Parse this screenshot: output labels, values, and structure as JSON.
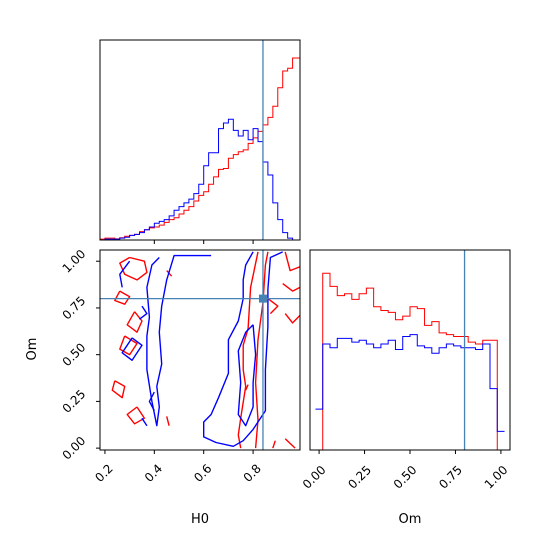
{
  "chart_data": [
    {
      "type": "histogram",
      "variable": "H0",
      "xlim": [
        0.18,
        0.99
      ],
      "truth": 0.84,
      "bin_edges": [
        0.18,
        0.2,
        0.22,
        0.24,
        0.26,
        0.28,
        0.3,
        0.32,
        0.34,
        0.36,
        0.38,
        0.4,
        0.42,
        0.44,
        0.46,
        0.48,
        0.5,
        0.52,
        0.54,
        0.56,
        0.58,
        0.6,
        0.62,
        0.64,
        0.66,
        0.68,
        0.7,
        0.72,
        0.74,
        0.76,
        0.78,
        0.8,
        0.82,
        0.84,
        0.86,
        0.88,
        0.9,
        0.92,
        0.94,
        0.96,
        0.99
      ],
      "series": [
        {
          "color": "#ff0000",
          "values": [
            0.5,
            1.0,
            1.0,
            0.6,
            1.2,
            2.0,
            2.5,
            3.0,
            4.5,
            5.5,
            6.5,
            7.0,
            8.0,
            9.5,
            11.0,
            12.0,
            14.0,
            16.0,
            18.0,
            21.0,
            24.0,
            26.0,
            30.0,
            34.0,
            38.0,
            38.5,
            44.0,
            46.0,
            47.5,
            48.5,
            52.0,
            55.0,
            58.5,
            62.0,
            66.0,
            72.0,
            82.0,
            91.0,
            92.5,
            98.0
          ]
        },
        {
          "color": "#0000ff",
          "values": [
            0.0,
            0.5,
            0.5,
            0.5,
            1.0,
            1.5,
            2.5,
            3.0,
            4.0,
            5.5,
            7.0,
            9.0,
            10.0,
            11.0,
            13.0,
            16.0,
            18.0,
            20.0,
            22.0,
            25.0,
            30.0,
            40.0,
            47.0,
            47.0,
            60.0,
            63.0,
            65.0,
            59.0,
            56.0,
            59.0,
            54.0,
            60.0,
            53.0,
            42.0,
            35.0,
            20.0,
            11.0,
            4.0,
            1.0,
            0.0
          ]
        }
      ]
    },
    {
      "type": "contour",
      "x_variable": "H0",
      "y_variable": "Om",
      "xlabel": "H0",
      "ylabel": "Om",
      "xlim": [
        0.18,
        0.99
      ],
      "ylim": [
        -0.01,
        1.06
      ],
      "xticks": [
        "0.2",
        "0.4",
        "0.6",
        "0.8"
      ],
      "yticks": [
        "0.00",
        "0.25",
        "0.50",
        "0.75",
        "1.00"
      ],
      "truth": [
        0.84,
        0.8
      ],
      "series": [
        {
          "color": "#ff0000",
          "paths": [
            [
              [
                0.3,
                1.02
              ],
              [
                0.36,
                1.0
              ],
              [
                0.37,
                0.94
              ],
              [
                0.33,
                0.9
              ],
              [
                0.28,
                0.93
              ],
              [
                0.26,
                0.99
              ],
              [
                0.3,
                1.02
              ]
            ],
            [
              [
                0.26,
                0.84
              ],
              [
                0.3,
                0.81
              ],
              [
                0.28,
                0.77
              ],
              [
                0.24,
                0.79
              ],
              [
                0.26,
                0.84
              ]
            ],
            [
              [
                0.32,
                0.73
              ],
              [
                0.35,
                0.68
              ],
              [
                0.33,
                0.62
              ],
              [
                0.29,
                0.66
              ],
              [
                0.32,
                0.73
              ]
            ],
            [
              [
                0.28,
                0.6
              ],
              [
                0.33,
                0.56
              ],
              [
                0.3,
                0.5
              ],
              [
                0.26,
                0.53
              ],
              [
                0.28,
                0.6
              ]
            ],
            [
              [
                0.24,
                0.36
              ],
              [
                0.28,
                0.33
              ],
              [
                0.27,
                0.27
              ],
              [
                0.23,
                0.31
              ],
              [
                0.24,
                0.36
              ]
            ],
            [
              [
                0.33,
                0.22
              ],
              [
                0.36,
                0.16
              ],
              [
                0.32,
                0.13
              ],
              [
                0.29,
                0.18
              ],
              [
                0.33,
                0.22
              ]
            ],
            [
              [
                0.45,
                0.17
              ],
              [
                0.46,
                0.12
              ]
            ],
            [
              [
                0.45,
                0.95
              ],
              [
                0.47,
                0.92
              ]
            ],
            [
              [
                0.82,
                1.05
              ],
              [
                0.79,
                0.86
              ],
              [
                0.78,
                0.64
              ],
              [
                0.76,
                0.55
              ],
              [
                0.76,
                0.42
              ],
              [
                0.77,
                0.33
              ],
              [
                0.75,
                0.16
              ],
              [
                0.74,
                0.07
              ],
              [
                0.75,
                0.0
              ]
            ],
            [
              [
                0.81,
                0.0
              ],
              [
                0.82,
                0.15
              ],
              [
                0.81,
                0.35
              ],
              [
                0.82,
                0.58
              ],
              [
                0.84,
                0.78
              ],
              [
                0.85,
                0.98
              ],
              [
                0.86,
                1.05
              ]
            ],
            [
              [
                0.93,
                1.05
              ],
              [
                0.95,
                0.95
              ],
              [
                0.99,
                0.97
              ]
            ],
            [
              [
                0.92,
                0.88
              ],
              [
                0.96,
                0.84
              ],
              [
                0.99,
                0.86
              ]
            ],
            [
              [
                0.93,
                0.72
              ],
              [
                0.96,
                0.67
              ],
              [
                0.99,
                0.71
              ]
            ],
            [
              [
                0.86,
                0.8
              ],
              [
                0.9,
                0.76
              ],
              [
                0.87,
                0.72
              ]
            ],
            [
              [
                0.93,
                0.05
              ],
              [
                0.97,
                0.0
              ]
            ],
            [
              [
                0.88,
                0.0
              ],
              [
                0.89,
                0.04
              ]
            ],
            [
              [
                0.78,
                0.34
              ],
              [
                0.77,
                0.31
              ]
            ]
          ]
        },
        {
          "color": "#0000ff",
          "paths": [
            [
              [
                0.92,
                1.05
              ],
              [
                0.87,
                1.02
              ],
              [
                0.86,
                0.85
              ],
              [
                0.86,
                0.65
              ],
              [
                0.85,
                0.42
              ],
              [
                0.85,
                0.2
              ],
              [
                0.8,
                0.1
              ],
              [
                0.76,
                0.04
              ],
              [
                0.72,
                0.01
              ],
              [
                0.65,
                0.03
              ],
              [
                0.6,
                0.06
              ],
              [
                0.6,
                0.14
              ],
              [
                0.63,
                0.18
              ],
              [
                0.66,
                0.27
              ],
              [
                0.7,
                0.4
              ],
              [
                0.7,
                0.58
              ],
              [
                0.74,
                0.68
              ],
              [
                0.76,
                0.8
              ],
              [
                0.76,
                0.9
              ],
              [
                0.77,
                0.98
              ],
              [
                0.8,
                1.05
              ]
            ],
            [
              [
                0.8,
                0.66
              ],
              [
                0.81,
                0.5
              ],
              [
                0.8,
                0.35
              ],
              [
                0.8,
                0.22
              ],
              [
                0.77,
                0.12
              ],
              [
                0.74,
                0.18
              ],
              [
                0.75,
                0.35
              ],
              [
                0.74,
                0.52
              ],
              [
                0.77,
                0.62
              ],
              [
                0.8,
                0.66
              ]
            ],
            [
              [
                0.63,
                1.03
              ],
              [
                0.48,
                1.03
              ],
              [
                0.45,
                0.9
              ],
              [
                0.43,
                0.76
              ],
              [
                0.42,
                0.62
              ],
              [
                0.43,
                0.45
              ],
              [
                0.41,
                0.33
              ],
              [
                0.42,
                0.22
              ],
              [
                0.41,
                0.12
              ],
              [
                0.39,
                0.25
              ],
              [
                0.37,
                0.42
              ],
              [
                0.37,
                0.6
              ],
              [
                0.38,
                0.7
              ],
              [
                0.37,
                0.86
              ],
              [
                0.39,
                0.98
              ],
              [
                0.42,
                1.02
              ]
            ],
            [
              [
                0.3,
                1.0
              ],
              [
                0.26,
                0.93
              ],
              [
                0.27,
                0.86
              ]
            ],
            [
              [
                0.31,
                0.59
              ],
              [
                0.35,
                0.55
              ],
              [
                0.31,
                0.47
              ],
              [
                0.27,
                0.51
              ],
              [
                0.31,
                0.59
              ]
            ],
            [
              [
                0.35,
                0.76
              ],
              [
                0.37,
                0.72
              ],
              [
                0.34,
                0.69
              ]
            ],
            [
              [
                0.4,
                0.3
              ],
              [
                0.38,
                0.25
              ],
              [
                0.4,
                0.2
              ]
            ],
            [
              [
                0.35,
                0.16
              ],
              [
                0.37,
                0.12
              ]
            ]
          ]
        }
      ]
    },
    {
      "type": "histogram",
      "variable": "Om",
      "xlabel": "Om",
      "xlim": [
        -0.05,
        1.05
      ],
      "xticks": [
        "0.00",
        "0.25",
        "0.50",
        "0.75",
        "1.00"
      ],
      "truth": 0.8,
      "bin_edges": [
        -0.02,
        0.02,
        0.06,
        0.1,
        0.14,
        0.18,
        0.22,
        0.26,
        0.3,
        0.34,
        0.38,
        0.42,
        0.46,
        0.5,
        0.54,
        0.58,
        0.62,
        0.66,
        0.7,
        0.74,
        0.78,
        0.82,
        0.86,
        0.9,
        0.94,
        0.98,
        1.02
      ],
      "series": [
        {
          "color": "#ff0000",
          "values": [
            0.0,
            95.0,
            88.0,
            83.0,
            84.0,
            81.0,
            84.0,
            87.0,
            77.0,
            75.0,
            74.0,
            70.0,
            72.0,
            77.0,
            76.0,
            67.0,
            69.0,
            63.0,
            62.0,
            61.0,
            61.0,
            58.0,
            57.0,
            59.0,
            59.0,
            0.0
          ]
        },
        {
          "color": "#0000ff",
          "values": [
            22.0,
            57.0,
            55.0,
            60.0,
            60.0,
            58.0,
            59.0,
            57.0,
            55.0,
            57.0,
            59.0,
            54.0,
            61.0,
            62.0,
            56.0,
            55.0,
            52.0,
            55.0,
            57.0,
            56.0,
            55.0,
            55.0,
            54.0,
            57.0,
            33.0,
            10.0
          ]
        }
      ]
    }
  ]
}
